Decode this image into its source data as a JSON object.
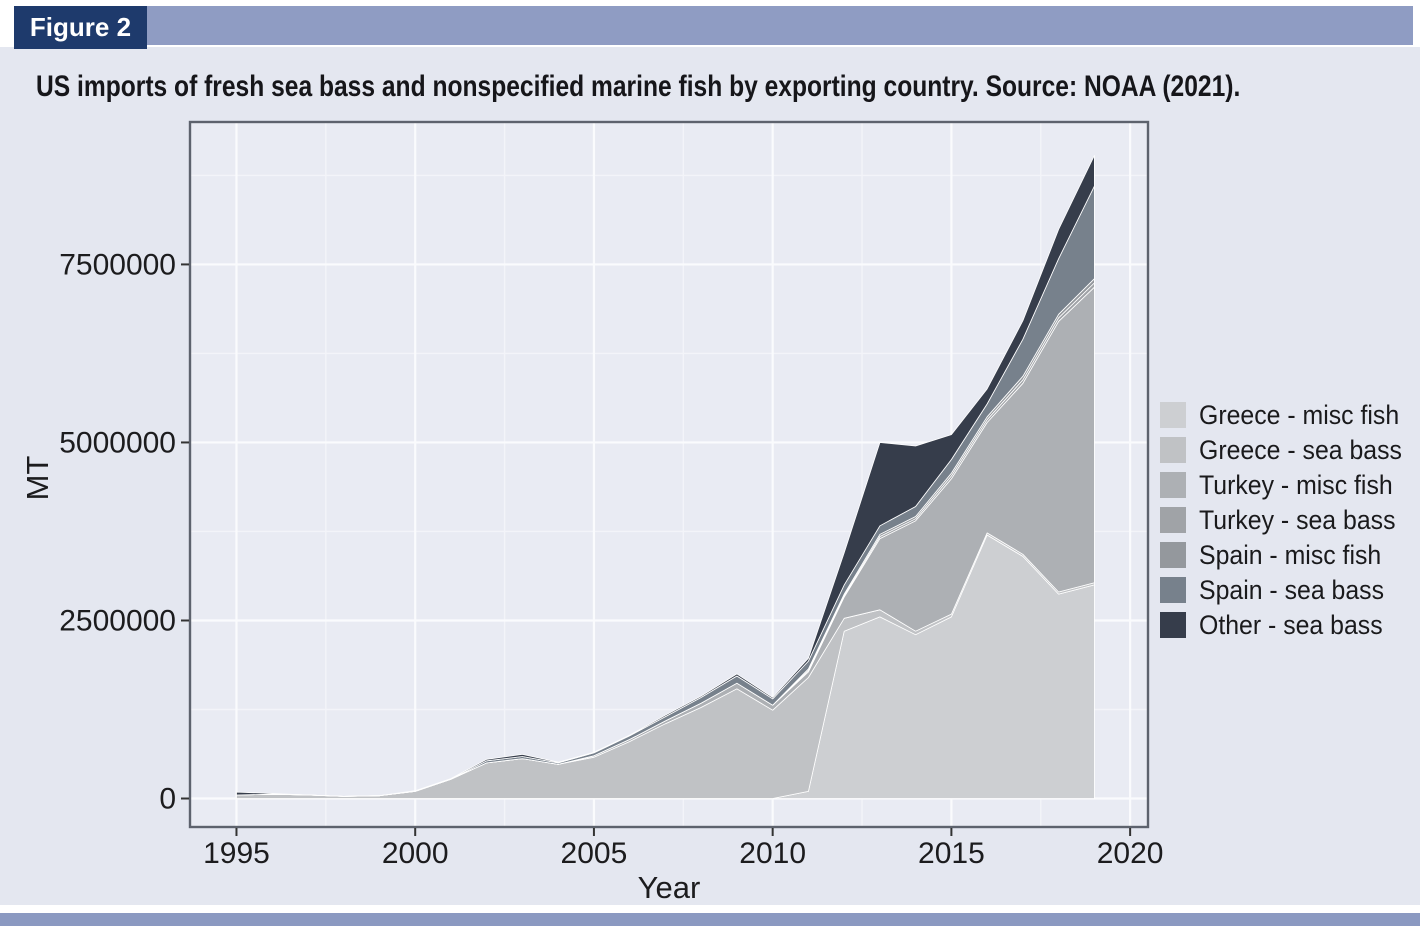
{
  "figure": {
    "label": "Figure 2",
    "caption": "US imports of fresh sea bass and nonspecified marine fish by exporting country. Source: NOAA (2021)."
  },
  "colors": {
    "figure_label_bg": "#1e3a6c",
    "figure_label_text": "#ffffff",
    "header_bar": "#8f9cc3",
    "bottom_bar": "#8b99c1",
    "page_bg": "#e4e7f0",
    "plot_bg": "#e9ebf3",
    "grid_major": "#fafbfd",
    "grid_minor": "#f3f4f9",
    "plot_border": "#5d626d",
    "tick": "#333333",
    "text": "#1c1c1e"
  },
  "chart_data": {
    "type": "area",
    "stacked": true,
    "xlabel": "Year",
    "ylabel": "MT",
    "x": [
      1995,
      1996,
      1997,
      1998,
      1999,
      2000,
      2001,
      2002,
      2003,
      2004,
      2005,
      2006,
      2007,
      2008,
      2009,
      2010,
      2011,
      2012,
      2013,
      2014,
      2015,
      2016,
      2017,
      2018,
      2019
    ],
    "series": [
      {
        "name": "Greece - misc fish",
        "color": "#cdcfd2",
        "values": [
          0,
          0,
          0,
          0,
          0,
          0,
          0,
          0,
          0,
          0,
          0,
          0,
          0,
          0,
          0,
          0,
          100000,
          2350000,
          2550000,
          2300000,
          2550000,
          3700000,
          3400000,
          2870000,
          3000000
        ]
      },
      {
        "name": "Greece - sea bass",
        "color": "#c0c2c5",
        "values": [
          50000,
          60000,
          50000,
          30000,
          40000,
          100000,
          270000,
          500000,
          560000,
          480000,
          580000,
          800000,
          1050000,
          1280000,
          1540000,
          1240000,
          1600000,
          180000,
          100000,
          50000,
          40000,
          30000,
          30000,
          30000,
          30000
        ]
      },
      {
        "name": "Turkey - misc fish",
        "color": "#adb0b4",
        "values": [
          0,
          0,
          0,
          0,
          0,
          0,
          0,
          0,
          0,
          0,
          20000,
          30000,
          40000,
          60000,
          80000,
          70000,
          80000,
          300000,
          1000000,
          1550000,
          1900000,
          1550000,
          2400000,
          3800000,
          4150000
        ]
      },
      {
        "name": "Turkey - sea bass",
        "color": "#a0a3a7",
        "values": [
          0,
          0,
          0,
          0,
          0,
          0,
          0,
          0,
          0,
          0,
          0,
          0,
          0,
          0,
          0,
          0,
          20000,
          20000,
          30000,
          30000,
          40000,
          40000,
          50000,
          50000,
          60000
        ]
      },
      {
        "name": "Spain - misc fish",
        "color": "#94989d",
        "values": [
          0,
          0,
          0,
          0,
          0,
          0,
          0,
          0,
          0,
          0,
          0,
          0,
          0,
          0,
          0,
          0,
          20000,
          20000,
          30000,
          30000,
          40000,
          40000,
          50000,
          50000,
          60000
        ]
      },
      {
        "name": "Spain - sea bass",
        "color": "#77818c",
        "values": [
          0,
          0,
          0,
          0,
          0,
          0,
          0,
          30000,
          30000,
          20000,
          40000,
          50000,
          60000,
          80000,
          100000,
          90000,
          110000,
          130000,
          120000,
          140000,
          190000,
          180000,
          520000,
          780000,
          1300000
        ]
      },
      {
        "name": "Other - sea bass",
        "color": "#363d4b",
        "values": [
          40000,
          10000,
          0,
          0,
          0,
          10000,
          10000,
          20000,
          30000,
          10000,
          10000,
          10000,
          20000,
          20000,
          30000,
          20000,
          40000,
          450000,
          1170000,
          850000,
          350000,
          210000,
          260000,
          410000,
          430000
        ]
      }
    ],
    "xlim": [
      1993.7,
      2020.5
    ],
    "ylim": [
      -400000,
      9500000
    ],
    "xticks": [
      1995,
      2000,
      2005,
      2010,
      2015,
      2020
    ],
    "yticks": [
      0,
      2500000,
      5000000,
      7500000
    ],
    "xticks_minor": [
      1997.5,
      2002.5,
      2007.5,
      2012.5,
      2017.5
    ],
    "yticks_minor": [
      1250000,
      3750000,
      6250000,
      8750000
    ],
    "grid": true,
    "legend_position": "right"
  }
}
